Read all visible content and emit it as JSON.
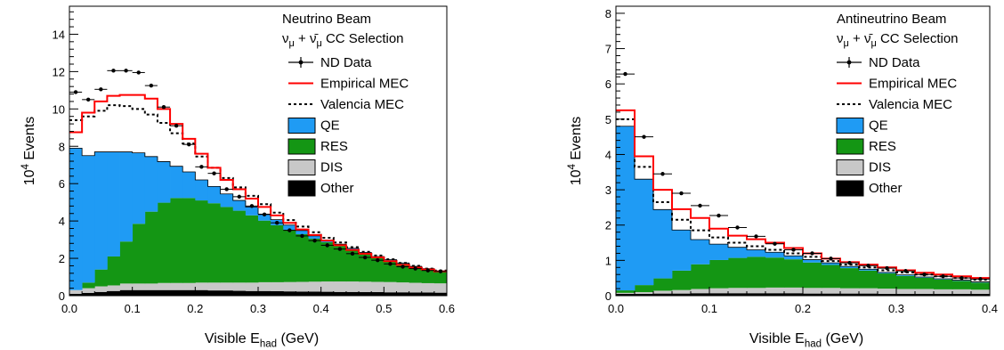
{
  "chart_data": [
    {
      "type": "histogram",
      "beam_label": "Neutrino Beam",
      "selection_label": "ν_μ + ν̄_μ CC Selection",
      "xlabel": "Visible E_had (GeV)",
      "ylabel": "10^4 Events",
      "xlim": [
        0.0,
        0.6
      ],
      "ylim": [
        0,
        15.5
      ],
      "xticks": [
        "0.0",
        "0.1",
        "0.2",
        "0.3",
        "0.4",
        "0.5",
        "0.6"
      ],
      "yticks": [
        "0",
        "2",
        "4",
        "6",
        "8",
        "10",
        "12",
        "14"
      ],
      "bin_edges": [
        0.0,
        0.02,
        0.04,
        0.06,
        0.08,
        0.1,
        0.12,
        0.14,
        0.16,
        0.18,
        0.2,
        0.22,
        0.24,
        0.26,
        0.28,
        0.3,
        0.32,
        0.34,
        0.36,
        0.38,
        0.4,
        0.42,
        0.44,
        0.46,
        0.48,
        0.5,
        0.52,
        0.54,
        0.56,
        0.58,
        0.6
      ],
      "stack": {
        "Other": [
          0.1,
          0.15,
          0.2,
          0.25,
          0.3,
          0.3,
          0.3,
          0.3,
          0.3,
          0.3,
          0.3,
          0.28,
          0.28,
          0.26,
          0.25,
          0.25,
          0.24,
          0.23,
          0.22,
          0.22,
          0.21,
          0.2,
          0.2,
          0.19,
          0.19,
          0.18,
          0.18,
          0.17,
          0.17,
          0.16
        ],
        "DIS": [
          0.2,
          0.25,
          0.3,
          0.3,
          0.35,
          0.35,
          0.35,
          0.38,
          0.38,
          0.38,
          0.4,
          0.42,
          0.42,
          0.44,
          0.45,
          0.47,
          0.48,
          0.5,
          0.52,
          0.53,
          0.55,
          0.56,
          0.56,
          0.56,
          0.55,
          0.55,
          0.53,
          0.52,
          0.5,
          0.5
        ],
        "RES": [
          0.0,
          0.3,
          0.9,
          1.55,
          2.25,
          3.2,
          3.85,
          4.3,
          4.55,
          4.55,
          4.4,
          4.25,
          4.05,
          3.85,
          3.6,
          3.3,
          3.05,
          2.8,
          2.55,
          2.3,
          2.1,
          1.9,
          1.7,
          1.5,
          1.3,
          1.15,
          1.0,
          0.85,
          0.75,
          0.65
        ],
        "QE": [
          7.6,
          6.8,
          6.3,
          5.6,
          4.8,
          3.8,
          2.95,
          2.2,
          1.7,
          1.4,
          1.1,
          0.9,
          0.7,
          0.55,
          0.45,
          0.35,
          0.3,
          0.25,
          0.2,
          0.15,
          0.12,
          0.1,
          0.08,
          0.07,
          0.06,
          0.05,
          0.04,
          0.03,
          0.03,
          0.02
        ]
      },
      "valencia_mec": [
        9.4,
        9.6,
        9.9,
        10.2,
        10.15,
        10.0,
        9.7,
        9.25,
        8.7,
        8.15,
        7.45,
        6.85,
        6.3,
        5.8,
        5.35,
        4.9,
        4.45,
        4.05,
        3.7,
        3.4,
        3.1,
        2.85,
        2.6,
        2.35,
        2.15,
        1.95,
        1.75,
        1.6,
        1.45,
        1.35
      ],
      "empirical_mec": [
        8.75,
        9.8,
        10.4,
        10.7,
        10.75,
        10.75,
        10.55,
        10.0,
        9.2,
        8.4,
        7.6,
        6.85,
        6.2,
        5.7,
        5.2,
        4.75,
        4.3,
        3.9,
        3.55,
        3.25,
        2.95,
        2.7,
        2.45,
        2.25,
        2.05,
        1.85,
        1.65,
        1.5,
        1.4,
        1.3
      ],
      "nd_data": [
        10.9,
        10.5,
        11.05,
        12.05,
        12.05,
        11.95,
        11.25,
        10.1,
        9.1,
        8.1,
        6.9,
        6.55,
        5.7,
        5.3,
        4.8,
        4.35,
        3.9,
        3.5,
        3.2,
        2.95,
        2.7,
        2.5,
        2.25,
        2.05,
        1.9,
        1.7,
        1.55,
        1.45,
        1.35,
        1.3
      ],
      "legend": [
        {
          "label": "ND Data",
          "kind": "data"
        },
        {
          "label": "Empirical MEC",
          "kind": "line",
          "color": "#ff0000"
        },
        {
          "label": "Valencia MEC",
          "kind": "dashed",
          "color": "#000000"
        },
        {
          "label": "QE",
          "kind": "fill",
          "color": "#1f9bf4"
        },
        {
          "label": "RES",
          "kind": "fill",
          "color": "#149614"
        },
        {
          "label": "DIS",
          "kind": "fill",
          "color": "#c8c8c8"
        },
        {
          "label": "Other",
          "kind": "fill",
          "color": "#000000"
        }
      ],
      "legend_placement": "top-right"
    },
    {
      "type": "histogram",
      "beam_label": "Antineutrino Beam",
      "selection_label": "ν_μ + ν̄_μ CC Selection",
      "xlabel": "Visible E_had (GeV)",
      "ylabel": "10^4 Events",
      "xlim": [
        0.0,
        0.4
      ],
      "ylim": [
        0,
        8.2
      ],
      "xticks": [
        "0.0",
        "0.1",
        "0.2",
        "0.3",
        "0.4"
      ],
      "yticks": [
        "0",
        "1",
        "2",
        "3",
        "4",
        "5",
        "6",
        "7",
        "8"
      ],
      "bin_edges": [
        0.0,
        0.02,
        0.04,
        0.06,
        0.08,
        0.1,
        0.12,
        0.14,
        0.16,
        0.18,
        0.2,
        0.22,
        0.24,
        0.26,
        0.28,
        0.3,
        0.32,
        0.34,
        0.36,
        0.38,
        0.4
      ],
      "stack": {
        "Other": [
          0.05,
          0.05,
          0.06,
          0.06,
          0.07,
          0.07,
          0.07,
          0.07,
          0.07,
          0.07,
          0.06,
          0.06,
          0.06,
          0.06,
          0.05,
          0.05,
          0.05,
          0.05,
          0.05,
          0.05
        ],
        "DIS": [
          0.03,
          0.05,
          0.08,
          0.1,
          0.12,
          0.14,
          0.15,
          0.15,
          0.16,
          0.16,
          0.16,
          0.16,
          0.15,
          0.15,
          0.15,
          0.14,
          0.14,
          0.13,
          0.13,
          0.12
        ],
        "RES": [
          0.07,
          0.2,
          0.35,
          0.55,
          0.7,
          0.8,
          0.85,
          0.88,
          0.85,
          0.8,
          0.72,
          0.65,
          0.57,
          0.5,
          0.43,
          0.37,
          0.32,
          0.28,
          0.24,
          0.2
        ],
        "QE": [
          4.65,
          3.0,
          1.95,
          1.15,
          0.7,
          0.45,
          0.3,
          0.2,
          0.15,
          0.1,
          0.08,
          0.06,
          0.05,
          0.04,
          0.03,
          0.03,
          0.02,
          0.02,
          0.02,
          0.02
        ]
      },
      "valencia_mec": [
        5.0,
        3.65,
        2.65,
        2.15,
        1.85,
        1.65,
        1.5,
        1.4,
        1.3,
        1.2,
        1.1,
        0.98,
        0.88,
        0.8,
        0.72,
        0.66,
        0.6,
        0.55,
        0.5,
        0.45
      ],
      "empirical_mec": [
        5.25,
        3.95,
        3.0,
        2.45,
        2.2,
        1.9,
        1.7,
        1.6,
        1.5,
        1.35,
        1.2,
        1.05,
        0.95,
        0.88,
        0.8,
        0.72,
        0.65,
        0.6,
        0.55,
        0.5
      ],
      "nd_data": [
        6.28,
        4.5,
        3.45,
        2.9,
        2.55,
        2.27,
        1.93,
        1.68,
        1.47,
        1.3,
        1.2,
        1.05,
        0.93,
        0.85,
        0.78,
        0.7,
        0.6,
        0.55,
        0.5,
        0.47
      ],
      "legend": [
        {
          "label": "ND Data",
          "kind": "data"
        },
        {
          "label": "Empirical MEC",
          "kind": "line",
          "color": "#ff0000"
        },
        {
          "label": "Valencia MEC",
          "kind": "dashed",
          "color": "#000000"
        },
        {
          "label": "QE",
          "kind": "fill",
          "color": "#1f9bf4"
        },
        {
          "label": "RES",
          "kind": "fill",
          "color": "#149614"
        },
        {
          "label": "DIS",
          "kind": "fill",
          "color": "#c8c8c8"
        },
        {
          "label": "Other",
          "kind": "fill",
          "color": "#000000"
        }
      ],
      "legend_placement": "top-right"
    }
  ]
}
